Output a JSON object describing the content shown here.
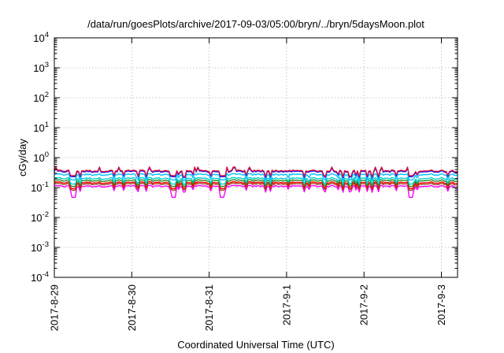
{
  "chart_data": {
    "type": "line",
    "title": "/data/run/goesPlots/archive/2017-09-03/05:00/bryn/../bryn/5daysMoon.plot",
    "xlabel": "Coordinated Universal Time (UTC)",
    "ylabel": "cGy/day",
    "y_scale": "log",
    "ylim": [
      0.0001,
      10000
    ],
    "y_ticks": [
      {
        "value": 0.0001,
        "base": "10",
        "exp": "-4"
      },
      {
        "value": 0.001,
        "base": "10",
        "exp": "-3"
      },
      {
        "value": 0.01,
        "base": "10",
        "exp": "-2"
      },
      {
        "value": 0.1,
        "base": "10",
        "exp": "-1"
      },
      {
        "value": 1,
        "base": "10",
        "exp": "0"
      },
      {
        "value": 10,
        "base": "10",
        "exp": "1"
      },
      {
        "value": 100,
        "base": "10",
        "exp": "2"
      },
      {
        "value": 1000,
        "base": "10",
        "exp": "3"
      },
      {
        "value": 10000,
        "base": "10",
        "exp": "4"
      }
    ],
    "x_range": [
      "2017-08-29 00:00",
      "2017-09-03 05:00"
    ],
    "x_ticks": [
      "2017-8-29",
      "2017-8-30",
      "2017-8-31",
      "2017-9-1",
      "2017-9-2",
      "2017-9-3"
    ],
    "grid": true,
    "x_grid_dates": [
      "2017-08-29",
      "2017-08-30",
      "2017-08-31",
      "2017-09-01",
      "2017-09-02",
      "2017-09-03"
    ],
    "dips": [
      "2017-08-29 06:00",
      "2017-08-30 13:00",
      "2017-08-31 04:00",
      "2017-09-02 14:30"
    ],
    "series": [
      {
        "color": "#ff00ff",
        "level": 0.11
      },
      {
        "color": "#a0522d",
        "level": 0.13
      },
      {
        "color": "#ff0000",
        "level": 0.145
      },
      {
        "color": "#228b22",
        "level": 0.17
      },
      {
        "color": "#00ced1",
        "level": 0.2
      },
      {
        "color": "#00bfff",
        "level": 0.27
      },
      {
        "color": "#0000ff",
        "level": 0.34
      },
      {
        "color": "#dc143c",
        "level": 0.36
      }
    ]
  }
}
